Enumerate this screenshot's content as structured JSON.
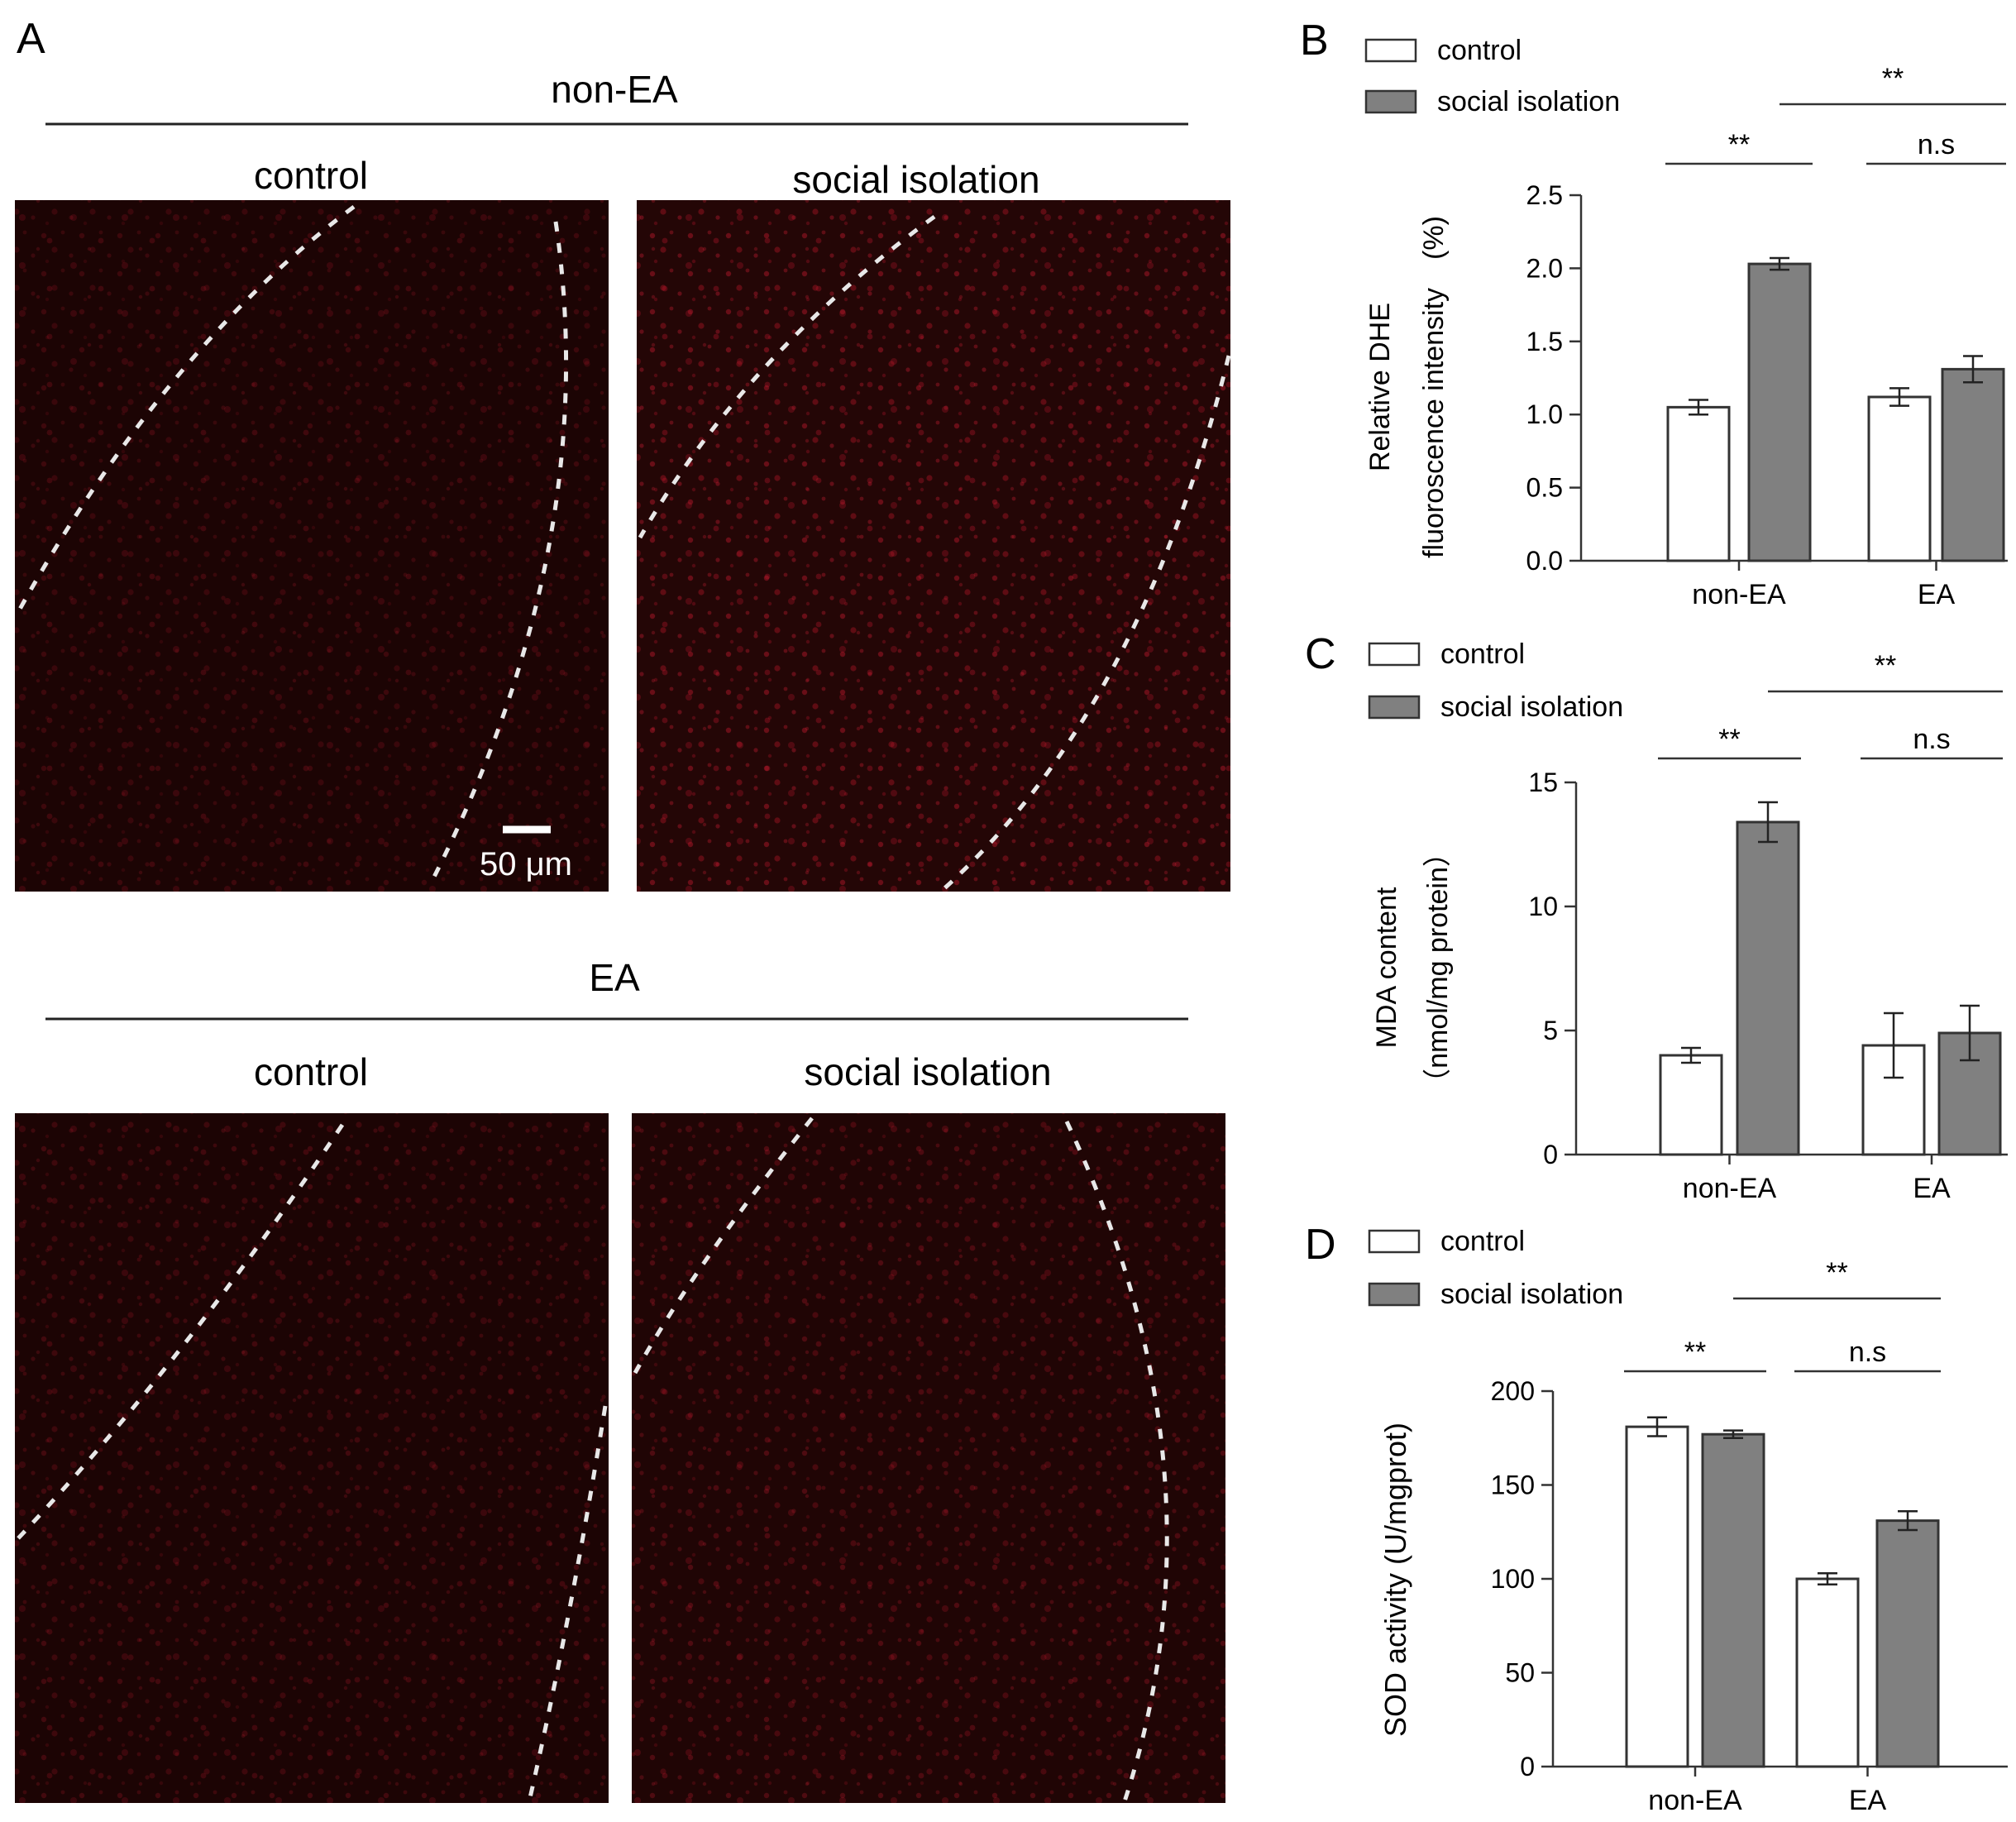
{
  "panel_a": {
    "letter": "A",
    "groups": [
      {
        "title": "non-EA",
        "subtitles": [
          "control",
          "social isolation"
        ]
      },
      {
        "title": "EA",
        "subtitles": [
          "control",
          "social isolation"
        ]
      }
    ],
    "scale_bar": "50 μm",
    "colors": {
      "tissue_bg": "#1f0505",
      "signal": "#c0162a",
      "boundary": "#e8e8e8"
    }
  },
  "legend": {
    "control": "control",
    "social_isolation": "social isolation"
  },
  "colors": {
    "control_fill": "#ffffff",
    "isolation_fill": "#808080",
    "stroke": "#333333"
  },
  "chart_data": [
    {
      "letter": "B",
      "type": "bar",
      "categories": [
        "non-EA",
        "EA"
      ],
      "ylabel_lines": [
        "Relative DHE",
        "fluoroscence intensity　(%)"
      ],
      "ylim": [
        0,
        2.5
      ],
      "yticks": [
        "0.0",
        "0.5",
        "1.0",
        "1.5",
        "2.0",
        "2.5"
      ],
      "series": [
        {
          "name": "control",
          "values": [
            1.05,
            1.12
          ],
          "errors": [
            0.05,
            0.06
          ]
        },
        {
          "name": "social isolation",
          "values": [
            2.03,
            1.31
          ],
          "errors": [
            0.04,
            0.09
          ]
        }
      ],
      "significance": {
        "within": [
          "**",
          "n.s"
        ],
        "between": "**"
      }
    },
    {
      "letter": "C",
      "type": "bar",
      "categories": [
        "non-EA",
        "EA"
      ],
      "ylabel_lines": [
        "MDA content",
        "（nmol/mg protein）"
      ],
      "ylim": [
        0,
        15
      ],
      "yticks": [
        "0",
        "5",
        "10",
        "15"
      ],
      "series": [
        {
          "name": "control",
          "values": [
            4.0,
            4.4
          ],
          "errors": [
            0.3,
            1.3
          ]
        },
        {
          "name": "social isolation",
          "values": [
            13.4,
            4.9
          ],
          "errors": [
            0.8,
            1.1
          ]
        }
      ],
      "significance": {
        "within": [
          "**",
          "n.s"
        ],
        "between": "**"
      }
    },
    {
      "letter": "D",
      "type": "bar",
      "categories": [
        "non-EA",
        "EA"
      ],
      "ylabel_lines": [
        "SOD activity (U/mgprot)"
      ],
      "ylim": [
        0,
        200
      ],
      "yticks": [
        "0",
        "50",
        "100",
        "150",
        "200"
      ],
      "series": [
        {
          "name": "control",
          "values": [
            181,
            100
          ],
          "errors": [
            5,
            3
          ]
        },
        {
          "name": "social isolation",
          "values": [
            177,
            131
          ],
          "errors": [
            2,
            5
          ]
        }
      ],
      "significance": {
        "within": [
          "**",
          "n.s"
        ],
        "between": "**"
      }
    }
  ]
}
